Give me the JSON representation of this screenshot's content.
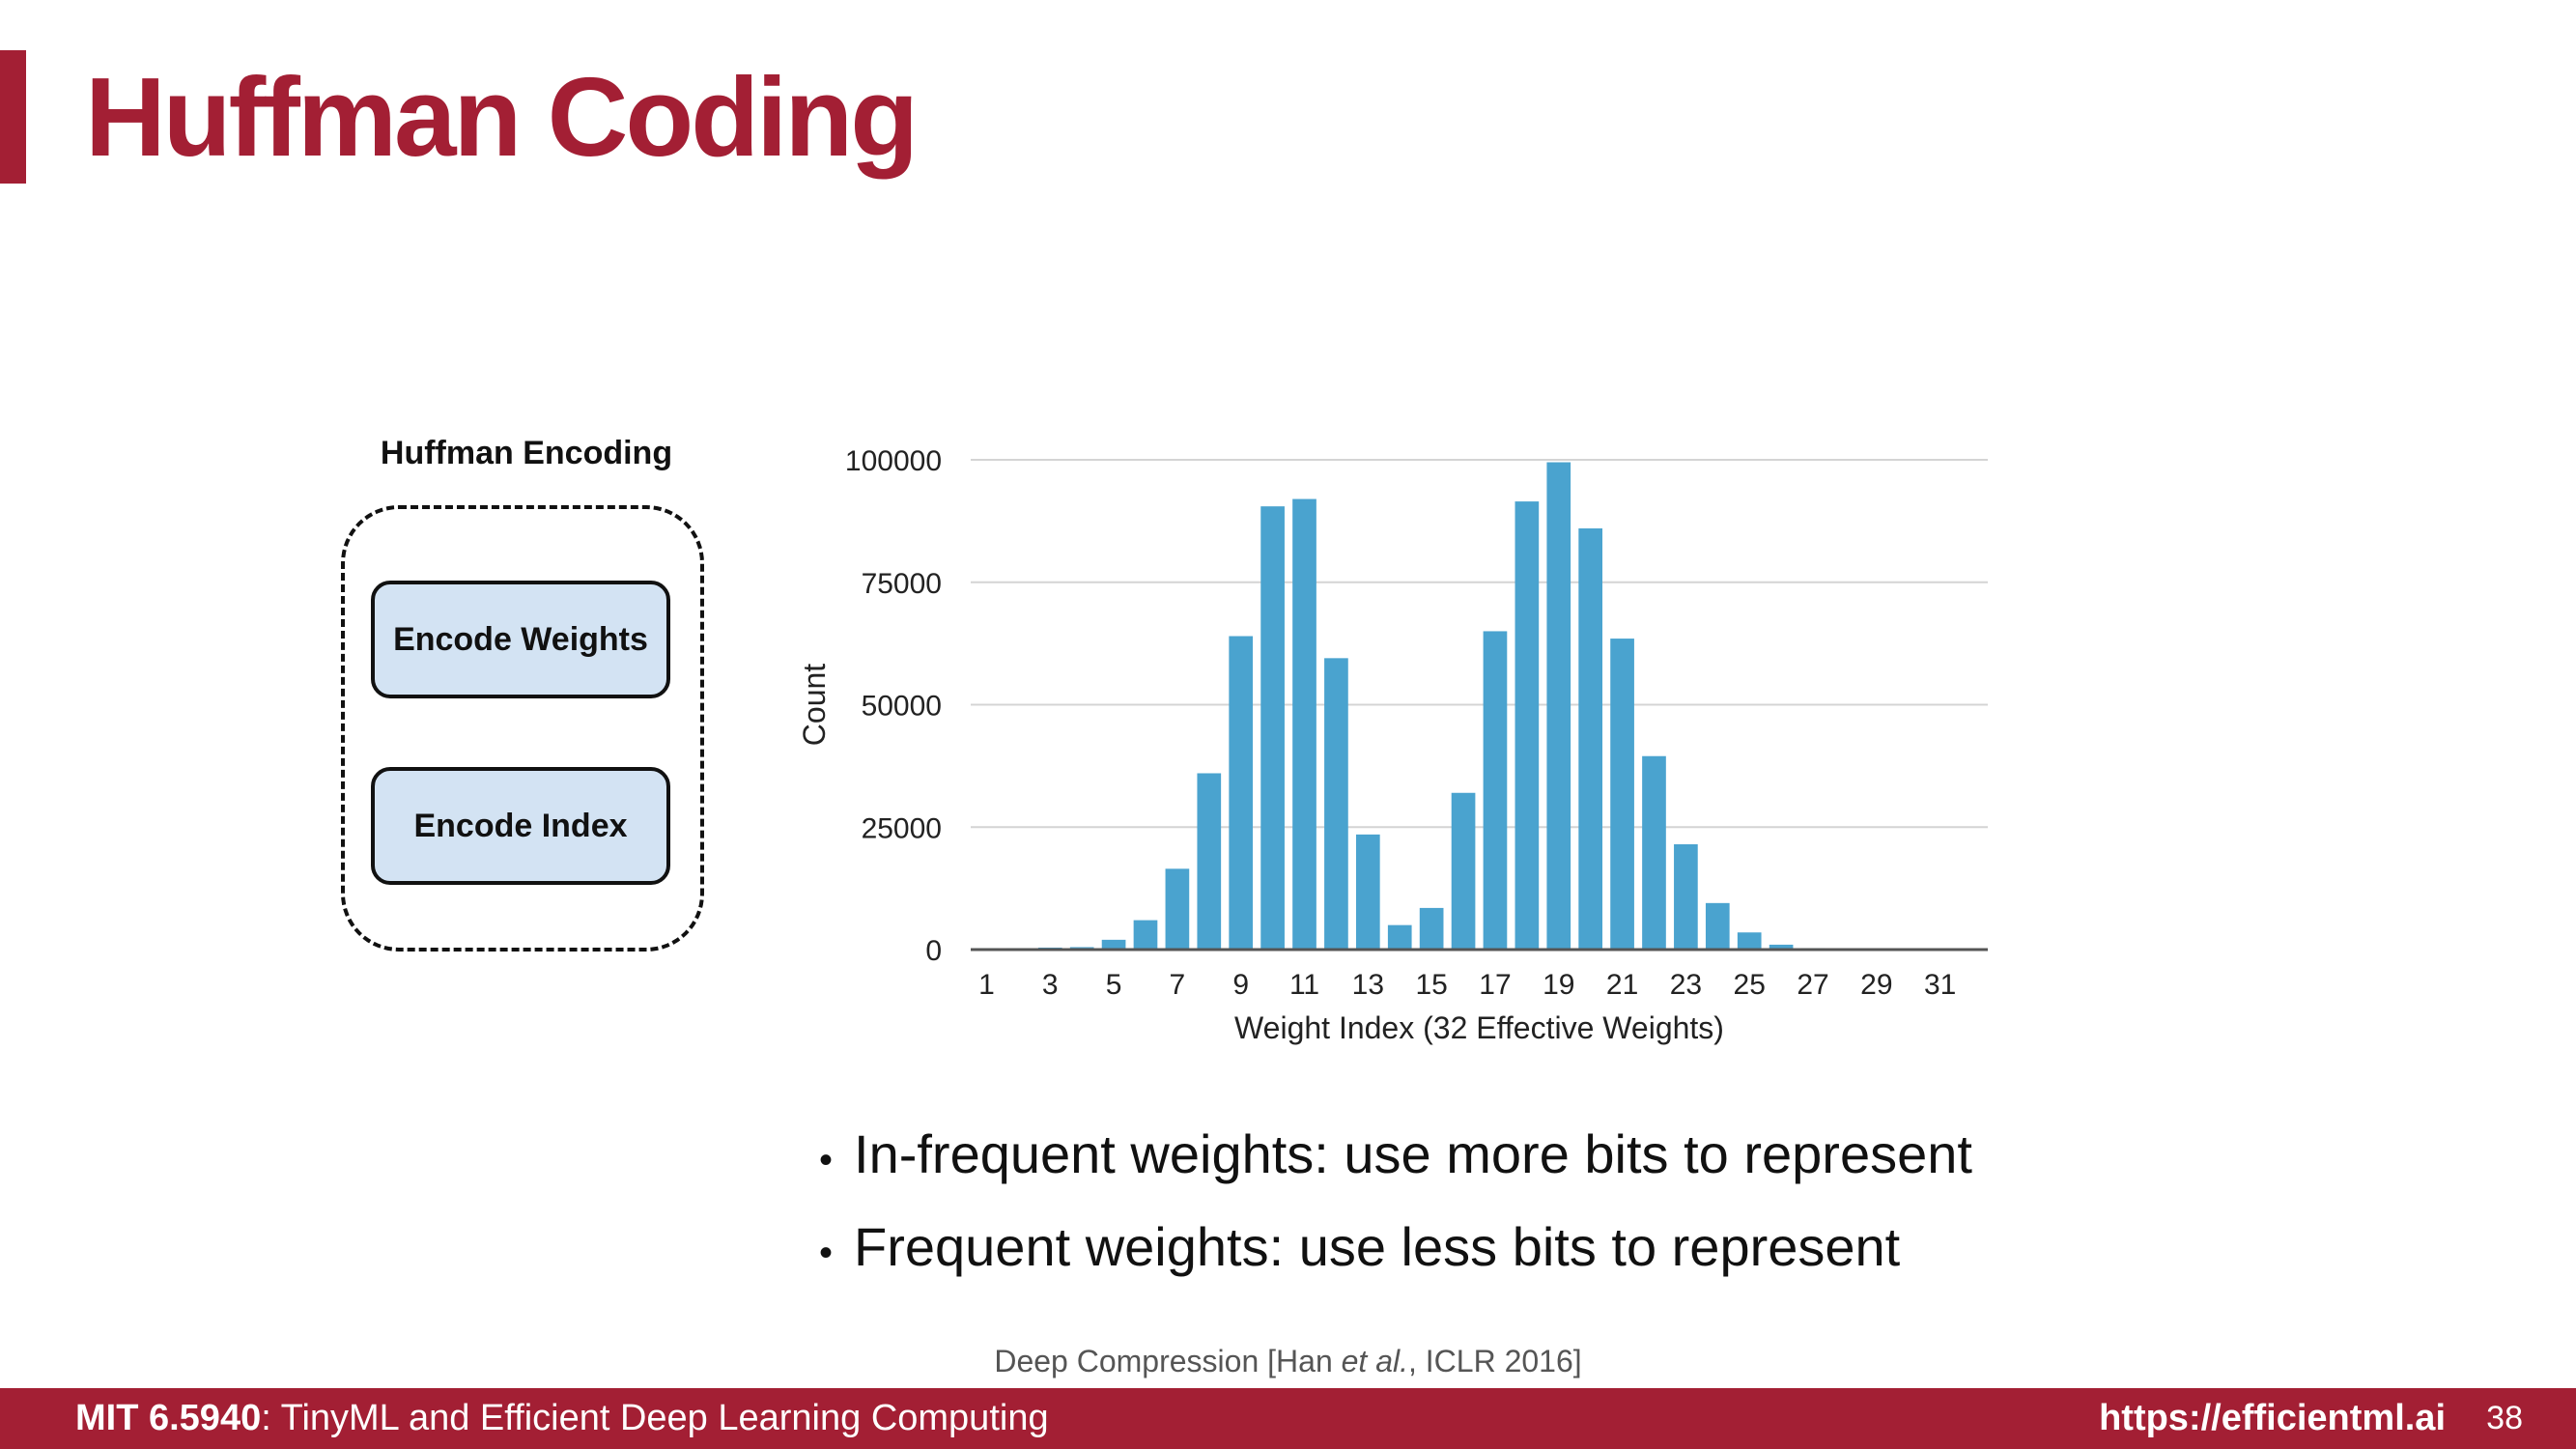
{
  "slide": {
    "title": "Huffman Coding",
    "encoding_heading": "Huffman Encoding",
    "encode_weights": "Encode Weights",
    "encode_index": "Encode Index",
    "bullets": [
      "In-frequent weights: use more bits to represent",
      "Frequent weights: use less bits to represent"
    ],
    "citation_prefix": "Deep Compression [Han ",
    "citation_etal": "et al.",
    "citation_suffix": ", ICLR 2016]"
  },
  "footer": {
    "course_code": "MIT 6.5940",
    "course_rest": ": TinyML and Efficient Deep Learning Computing",
    "url": "https://efficientml.ai",
    "page": "38"
  },
  "colors": {
    "accent": "#a31f34",
    "bar": "#4aa3cf",
    "box_fill": "#d3e3f3"
  },
  "chart_data": {
    "type": "bar",
    "xlabel": "Weight Index (32 Effective Weights)",
    "ylabel": "Count",
    "ylim": [
      0,
      100000
    ],
    "yticks": [
      0,
      25000,
      50000,
      75000,
      100000
    ],
    "ytick_labels": [
      "0",
      "25000",
      "50000",
      "75000",
      "100000"
    ],
    "xtick_labels": [
      "1",
      "3",
      "5",
      "7",
      "9",
      "11",
      "13",
      "15",
      "17",
      "19",
      "21",
      "23",
      "25",
      "27",
      "29",
      "31"
    ],
    "grid": true,
    "categories": [
      "1",
      "2",
      "3",
      "4",
      "5",
      "6",
      "7",
      "8",
      "9",
      "10",
      "11",
      "12",
      "13",
      "14",
      "15",
      "16",
      "17",
      "18",
      "19",
      "20",
      "21",
      "22",
      "23",
      "24",
      "25",
      "26",
      "27",
      "28",
      "29",
      "30",
      "31",
      "32"
    ],
    "values": [
      300,
      300,
      400,
      500,
      2000,
      6000,
      16500,
      36000,
      64000,
      90500,
      92000,
      59500,
      23500,
      5000,
      8500,
      32000,
      65000,
      91500,
      99500,
      86000,
      63500,
      39500,
      21500,
      9500,
      3500,
      1000,
      300,
      200,
      200,
      200,
      200,
      200
    ]
  }
}
